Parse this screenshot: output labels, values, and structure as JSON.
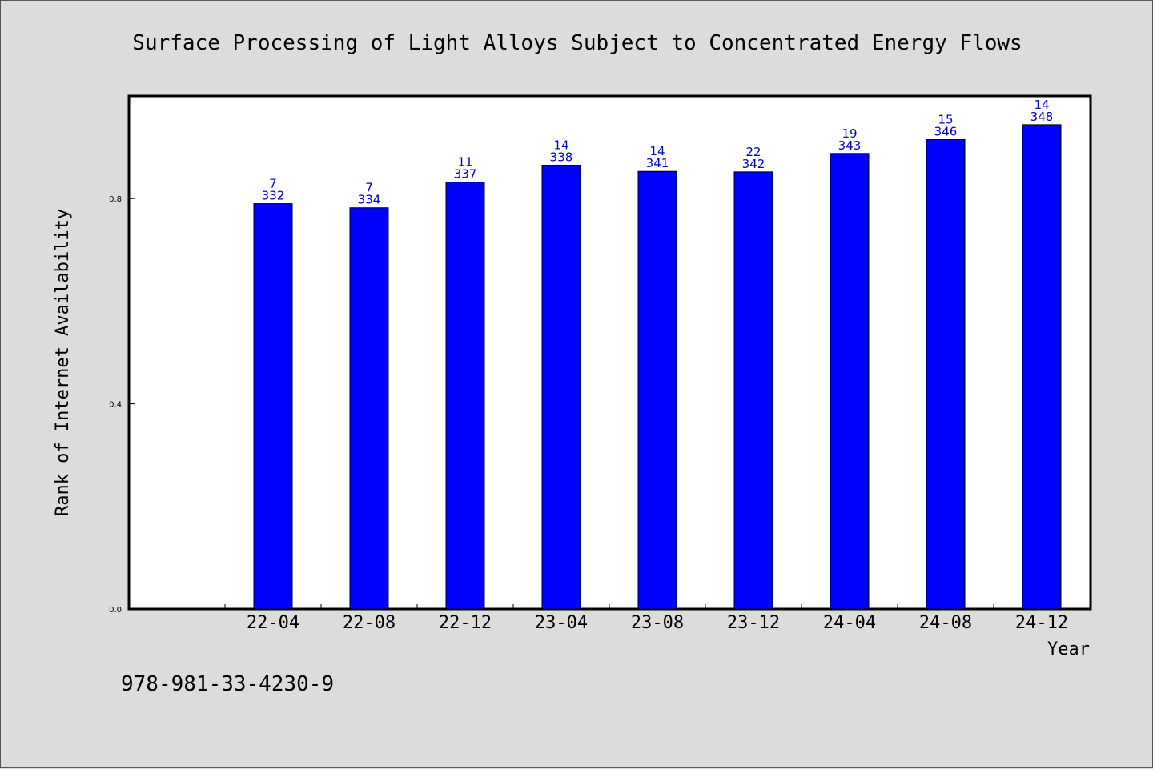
{
  "chart_data": {
    "type": "bar",
    "title": "Surface Processing of Light Alloys Subject to Concentrated Energy Flows",
    "xlabel": "Year",
    "ylabel": "Rank of Internet Availability",
    "categories": [
      "22-04",
      "22-08",
      "22-12",
      "23-04",
      "23-08",
      "23-12",
      "24-04",
      "24-08",
      "24-12"
    ],
    "values": [
      0.79,
      0.782,
      0.832,
      0.865,
      0.853,
      0.852,
      0.888,
      0.915,
      0.944
    ],
    "labels_top": [
      "7",
      "7",
      "11",
      "14",
      "14",
      "22",
      "19",
      "15",
      "14"
    ],
    "labels_bottom": [
      "332",
      "334",
      "337",
      "338",
      "341",
      "342",
      "343",
      "346",
      "348"
    ],
    "yticks": [
      "0.0",
      "0.4",
      "0.8"
    ],
    "ylim": [
      0,
      1.0
    ],
    "grid": false,
    "bar_color": "#0000ff",
    "label_color": "#0000cc"
  },
  "footer": "978-981-33-4230-9"
}
